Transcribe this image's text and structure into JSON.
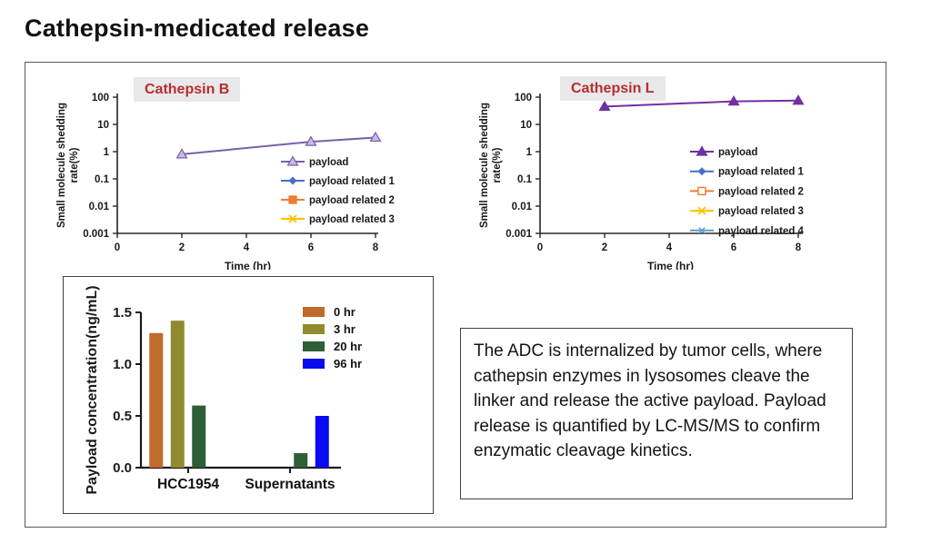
{
  "page_title": "Cathepsin-medicated release",
  "description": {
    "text": "The ADC is internalized by tumor cells, where cathepsin enzymes in lysosomes cleave the linker and release the active payload. Payload release is quantified by LC-MS/MS to confirm enzymatic cleavage kinetics."
  },
  "colors": {
    "chart_title_red": "#b42e2e",
    "chart_title_bg": "#e9e8ea",
    "payload_purple_b": "#7a5fa8",
    "payload_purple_l": "#7030a0",
    "axis_black": "#1a1a1a"
  },
  "chart_data": [
    {
      "id": "cathepsin-b",
      "type": "line",
      "title": "Cathepsin B",
      "xlabel": "Time (hr)",
      "ylabel": "Small molecule shedding rate(%)",
      "ylabel_lines": [
        "Small molecule shedding",
        "rate(%)"
      ],
      "y_scale": "log",
      "x_ticks": [
        0,
        2,
        4,
        6,
        8
      ],
      "y_ticks": [
        100,
        10,
        1,
        0.1,
        0.01,
        0.001
      ],
      "xlim": [
        0,
        8
      ],
      "ylim": [
        0.001,
        100
      ],
      "grid": false,
      "legend_position": "right-center",
      "series": [
        {
          "name": "payload",
          "marker": "triangle-open",
          "color": "#7a5fa8",
          "marker_fill": "#c6bce4",
          "x": [
            2,
            6,
            8
          ],
          "values": [
            0.8,
            2.3,
            3.3
          ]
        },
        {
          "name": "payload related 1",
          "marker": "diamond",
          "color": "#4472c4",
          "x": [],
          "values": []
        },
        {
          "name": "payload related 2",
          "marker": "square",
          "color": "#ed7d31",
          "x": [],
          "values": []
        },
        {
          "name": "payload related 3",
          "marker": "x",
          "color": "#ffc000",
          "x": [],
          "values": []
        }
      ]
    },
    {
      "id": "cathepsin-l",
      "type": "line",
      "title": "Cathepsin L",
      "xlabel": "Time (hr)",
      "ylabel": "Small molecule shedding rate(%)",
      "ylabel_lines": [
        "Small molecule shedding",
        "rate(%)"
      ],
      "y_scale": "log",
      "x_ticks": [
        0,
        2,
        4,
        6,
        8
      ],
      "y_ticks": [
        100,
        10,
        1,
        0.1,
        0.01,
        0.001
      ],
      "xlim": [
        0,
        8
      ],
      "ylim": [
        0.001,
        100
      ],
      "grid": false,
      "legend_position": "right-center",
      "series": [
        {
          "name": "payload",
          "marker": "triangle",
          "color": "#7030a0",
          "x": [
            2,
            6,
            8
          ],
          "values": [
            45,
            70,
            75
          ]
        },
        {
          "name": "payload related 1",
          "marker": "diamond",
          "color": "#4472c4",
          "x": [],
          "values": []
        },
        {
          "name": "payload related 2",
          "marker": "square-open",
          "color": "#ed7d31",
          "x": [],
          "values": []
        },
        {
          "name": "payload related 3",
          "marker": "x",
          "color": "#ffc000",
          "x": [],
          "values": []
        },
        {
          "name": "payload related 4",
          "marker": "asterisk",
          "color": "#5b9bd5",
          "x": [],
          "values": []
        }
      ]
    },
    {
      "id": "payload-concentration",
      "type": "bar",
      "title": "",
      "xlabel": "",
      "ylabel": "Payload concentration(ng/mL)",
      "categories": [
        "HCC1954",
        "Supernatants"
      ],
      "y_ticks": [
        0.0,
        0.5,
        1.0,
        1.5
      ],
      "ylim": [
        0,
        1.5
      ],
      "grid": false,
      "legend_position": "top-right",
      "series": [
        {
          "name": "0 hr",
          "color": "#c06a2b",
          "values": [
            1.3,
            0
          ]
        },
        {
          "name": "3 hr",
          "color": "#918b30",
          "values": [
            1.42,
            0
          ]
        },
        {
          "name": "20 hr",
          "color": "#2e5e36",
          "values": [
            0.6,
            0.14
          ]
        },
        {
          "name": "96 hr",
          "color": "#0b0bf0",
          "values": [
            0,
            0.5
          ]
        }
      ]
    }
  ]
}
